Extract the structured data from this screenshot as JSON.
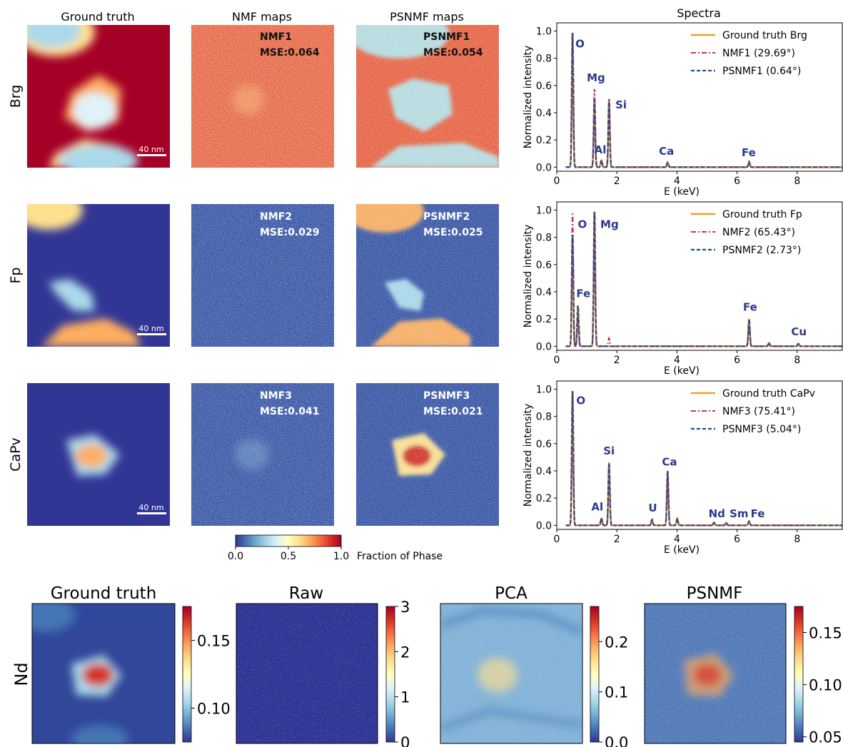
{
  "colors": {
    "ground_truth": "#e8a51c",
    "nmf": "#c2335e",
    "psnmf": "#1f4e9a",
    "element_label": "#2c3a8c"
  },
  "column_titles": [
    "Ground truth",
    "NMF maps",
    "PSNMF maps",
    "Spectra"
  ],
  "row_labels": [
    "Brg",
    "Fp",
    "CaPv"
  ],
  "scale_bar": "40 nm",
  "map_annotations": [
    {
      "nmf": [
        "NMF1",
        "MSE:0.064"
      ],
      "psnmf": [
        "PSNMF1",
        "MSE:0.054"
      ]
    },
    {
      "nmf": [
        "NMF2",
        "MSE:0.029"
      ],
      "psnmf": [
        "PSNMF2",
        "MSE:0.025"
      ]
    },
    {
      "nmf": [
        "NMF3",
        "MSE:0.041"
      ],
      "psnmf": [
        "PSNMF3",
        "MSE:0.021"
      ]
    }
  ],
  "shared_colorbar": {
    "label": "Fraction of Phase",
    "ticks": [
      "0.0",
      "0.5",
      "1.0"
    ],
    "range": [
      0,
      1
    ]
  },
  "bottom_row_label": "Nd",
  "bottom_titles": [
    "Ground truth",
    "Raw",
    "PCA",
    "PSNMF"
  ],
  "bottom_colorbars": [
    {
      "ticks": [
        0.1,
        0.15
      ],
      "tick_labels": [
        "0.10",
        "0.15"
      ],
      "range": [
        0.075,
        0.175
      ]
    },
    {
      "ticks": [
        0,
        1,
        2,
        3
      ],
      "tick_labels": [
        "0",
        "1",
        "2",
        "3"
      ],
      "range": [
        0,
        3
      ]
    },
    {
      "ticks": [
        0.0,
        0.1,
        0.2
      ],
      "tick_labels": [
        "0.0",
        "0.1",
        "0.2"
      ],
      "range": [
        0,
        0.27
      ]
    },
    {
      "ticks": [
        0.05,
        0.1,
        0.15
      ],
      "tick_labels": [
        "0.05",
        "0.10",
        "0.15"
      ],
      "range": [
        0.045,
        0.175
      ]
    }
  ],
  "chart_data": [
    {
      "type": "line",
      "title": "Spectra",
      "xlabel": "E (keV)",
      "ylabel": "Normalized intensity",
      "xlim": [
        0,
        9.5
      ],
      "ylim": [
        -0.03,
        1.06
      ],
      "xticks": [
        0,
        2,
        4,
        6,
        8
      ],
      "yticks": [
        0.0,
        0.2,
        0.4,
        0.6,
        0.8,
        1.0
      ],
      "legend_position": "top-right",
      "series": [
        {
          "name": "Ground truth Brg",
          "style": "solid",
          "peaks": [
            [
              0.525,
              1.0
            ],
            [
              1.254,
              0.5
            ],
            [
              1.487,
              0.05
            ],
            [
              1.74,
              0.5
            ],
            [
              3.69,
              0.035
            ],
            [
              6.4,
              0.04
            ]
          ]
        },
        {
          "name": "NMF1 (29.69°)",
          "style": "dashdot",
          "peaks": [
            [
              0.525,
              1.0
            ],
            [
              1.254,
              0.58
            ],
            [
              1.487,
              0.04
            ],
            [
              1.74,
              0.48
            ],
            [
              3.69,
              0.03
            ],
            [
              6.4,
              0.03
            ]
          ]
        },
        {
          "name": "PSNMF1 (0.64°)",
          "style": "dashed",
          "peaks": [
            [
              0.525,
              1.0
            ],
            [
              1.254,
              0.5
            ],
            [
              1.487,
              0.05
            ],
            [
              1.74,
              0.5
            ],
            [
              3.69,
              0.035
            ],
            [
              6.4,
              0.04
            ]
          ]
        }
      ],
      "annotations": [
        {
          "text": "O",
          "x": 0.62,
          "y": 0.88
        },
        {
          "text": "Mg",
          "x": 1.0,
          "y": 0.63
        },
        {
          "text": "Si",
          "x": 1.95,
          "y": 0.43
        },
        {
          "text": "Al",
          "x": 1.25,
          "y": 0.1
        },
        {
          "text": "Ca",
          "x": 3.4,
          "y": 0.09
        },
        {
          "text": "Fe",
          "x": 6.15,
          "y": 0.08
        }
      ]
    },
    {
      "type": "line",
      "title": "",
      "xlabel": "E (keV)",
      "ylabel": "Normalized intensity",
      "xlim": [
        0,
        9.5
      ],
      "ylim": [
        -0.03,
        1.06
      ],
      "xticks": [
        0,
        2,
        4,
        6,
        8
      ],
      "yticks": [
        0.0,
        0.2,
        0.4,
        0.6,
        0.8,
        1.0
      ],
      "legend_position": "top-right",
      "series": [
        {
          "name": "Ground truth Fp",
          "style": "solid",
          "peaks": [
            [
              0.525,
              0.82
            ],
            [
              0.705,
              0.3
            ],
            [
              1.254,
              1.0
            ],
            [
              6.4,
              0.2
            ],
            [
              7.06,
              0.025
            ],
            [
              8.04,
              0.02
            ]
          ]
        },
        {
          "name": "NMF2 (65.43°)",
          "style": "dashdot",
          "peaks": [
            [
              0.525,
              0.99
            ],
            [
              0.705,
              0.22
            ],
            [
              1.254,
              0.99
            ],
            [
              1.74,
              0.06
            ],
            [
              6.4,
              0.19
            ],
            [
              7.06,
              0.02
            ],
            [
              8.04,
              0.02
            ]
          ]
        },
        {
          "name": "PSNMF2 (2.73°)",
          "style": "dashed",
          "peaks": [
            [
              0.525,
              0.83
            ],
            [
              0.705,
              0.3
            ],
            [
              1.254,
              1.0
            ],
            [
              6.4,
              0.2
            ],
            [
              7.06,
              0.025
            ],
            [
              8.04,
              0.02
            ]
          ]
        }
      ],
      "annotations": [
        {
          "text": "O",
          "x": 0.7,
          "y": 0.87
        },
        {
          "text": "Mg",
          "x": 1.45,
          "y": 0.87
        },
        {
          "text": "Fe",
          "x": 0.65,
          "y": 0.36
        },
        {
          "text": "Fe",
          "x": 6.2,
          "y": 0.26
        },
        {
          "text": "Cu",
          "x": 7.8,
          "y": 0.08
        }
      ]
    },
    {
      "type": "line",
      "title": "",
      "xlabel": "E (keV)",
      "ylabel": "Normalized intensity",
      "xlim": [
        0,
        9.5
      ],
      "ylim": [
        -0.03,
        1.06
      ],
      "xticks": [
        0,
        2,
        4,
        6,
        8
      ],
      "yticks": [
        0.0,
        0.2,
        0.4,
        0.6,
        0.8,
        1.0
      ],
      "legend_position": "top-right",
      "series": [
        {
          "name": "Ground truth CaPv",
          "style": "solid",
          "peaks": [
            [
              0.525,
              1.0
            ],
            [
              1.487,
              0.05
            ],
            [
              1.74,
              0.46
            ],
            [
              3.17,
              0.04
            ],
            [
              3.69,
              0.4
            ],
            [
              4.01,
              0.05
            ],
            [
              5.23,
              0.02
            ],
            [
              5.64,
              0.02
            ],
            [
              6.4,
              0.03
            ]
          ]
        },
        {
          "name": "NMF3 (75.41°)",
          "style": "dashdot",
          "peaks": [
            [
              0.525,
              1.0
            ],
            [
              1.487,
              0.05
            ],
            [
              1.74,
              0.44
            ],
            [
              3.17,
              0.05
            ],
            [
              3.69,
              0.39
            ],
            [
              4.01,
              0.05
            ],
            [
              5.23,
              0.02
            ],
            [
              5.64,
              0.02
            ],
            [
              6.4,
              0.03
            ]
          ]
        },
        {
          "name": "PSNMF3 (5.04°)",
          "style": "dashed",
          "peaks": [
            [
              0.525,
              1.0
            ],
            [
              1.487,
              0.05
            ],
            [
              1.74,
              0.46
            ],
            [
              3.17,
              0.04
            ],
            [
              3.69,
              0.4
            ],
            [
              4.01,
              0.05
            ],
            [
              5.23,
              0.02
            ],
            [
              5.64,
              0.02
            ],
            [
              6.4,
              0.03
            ]
          ]
        }
      ],
      "annotations": [
        {
          "text": "O",
          "x": 0.65,
          "y": 0.89
        },
        {
          "text": "Si",
          "x": 1.55,
          "y": 0.52
        },
        {
          "text": "Ca",
          "x": 3.5,
          "y": 0.44
        },
        {
          "text": "Al",
          "x": 1.15,
          "y": 0.11
        },
        {
          "text": "U",
          "x": 3.05,
          "y": 0.1
        },
        {
          "text": "Nd",
          "x": 5.05,
          "y": 0.06
        },
        {
          "text": "Sm",
          "x": 5.75,
          "y": 0.06
        },
        {
          "text": "Fe",
          "x": 6.45,
          "y": 0.06
        }
      ]
    }
  ]
}
